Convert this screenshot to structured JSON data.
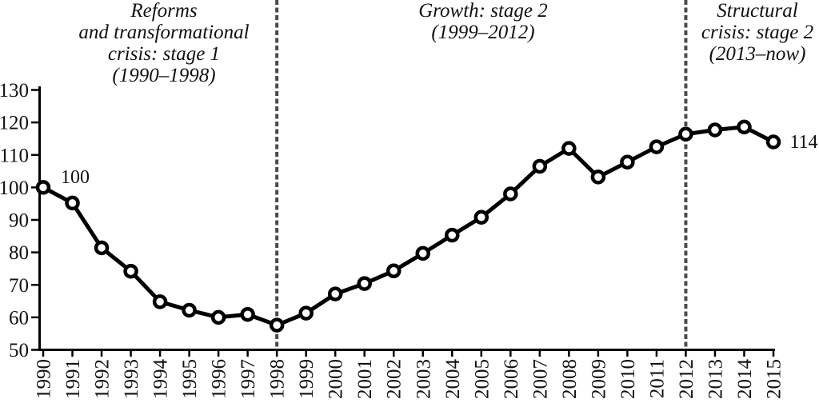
{
  "chart_data": {
    "type": "line",
    "title": "",
    "xlabel": "",
    "ylabel": "",
    "x": [
      1990,
      1991,
      1992,
      1993,
      1994,
      1995,
      1996,
      1997,
      1998,
      1999,
      2000,
      2001,
      2002,
      2003,
      2004,
      2005,
      2006,
      2007,
      2008,
      2009,
      2010,
      2011,
      2012,
      2013,
      2014,
      2015
    ],
    "values": [
      100,
      95.2,
      81.4,
      74.2,
      64.8,
      62.2,
      60.0,
      60.9,
      57.6,
      61.3,
      67.2,
      70.4,
      74.3,
      79.7,
      85.3,
      90.8,
      98.0,
      106.5,
      112.0,
      103.2,
      107.8,
      112.5,
      116.4,
      117.7,
      118.6,
      114
    ],
    "ylim": [
      50,
      130
    ],
    "yticks": [
      50,
      60,
      70,
      80,
      90,
      100,
      110,
      120,
      130
    ],
    "grid": false,
    "legend": "none",
    "phase_labels": [
      {
        "text": "Reforms\nand transformational\ncrisis: stage 1\n(1990–1998)"
      },
      {
        "text": "Growth: stage 2\n(1999–2012)"
      },
      {
        "text": "Structural\ncrisis: stage 2\n(2013–now)"
      }
    ],
    "dividers_at_x": [
      1998,
      2012
    ],
    "point_labels": [
      {
        "x": 1990,
        "text": "100"
      },
      {
        "x": 2015,
        "text": "114"
      }
    ],
    "colors": {
      "line": "#000000",
      "marker_fill": "#ffffff",
      "marker_stroke": "#000000",
      "axis": "#000000",
      "divider": "#4a4a4a"
    }
  }
}
